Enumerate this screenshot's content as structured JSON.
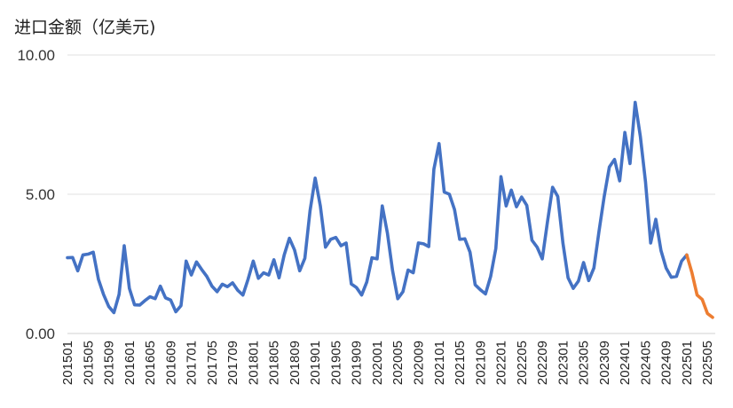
{
  "chart_data": {
    "type": "line",
    "title": "进口金额（亿美元)",
    "xlabel": "",
    "ylabel": "",
    "ylim": [
      0,
      10
    ],
    "yticks": [
      "0.00",
      "5.00",
      "10.00"
    ],
    "grid": true,
    "x_start": "201501",
    "x_end": "202506",
    "x_tick_labels": [
      "201501",
      "201505",
      "201509",
      "201601",
      "201605",
      "201609",
      "201701",
      "201705",
      "201709",
      "201801",
      "201805",
      "201809",
      "201901",
      "201905",
      "201909",
      "202001",
      "202005",
      "202009",
      "202101",
      "202105",
      "202109",
      "202201",
      "202205",
      "202209",
      "202301",
      "202305",
      "202309",
      "202401",
      "202405",
      "202409",
      "202501",
      "202505"
    ],
    "series": [
      {
        "color": "#4472C4",
        "x": [
          "201501",
          "201502",
          "201503",
          "201504",
          "201505",
          "201506",
          "201507",
          "201508",
          "201509",
          "201510",
          "201511",
          "201512",
          "201601",
          "201602",
          "201603",
          "201604",
          "201605",
          "201606",
          "201607",
          "201608",
          "201609",
          "201610",
          "201611",
          "201612",
          "201701",
          "201702",
          "201703",
          "201704",
          "201705",
          "201706",
          "201707",
          "201708",
          "201709",
          "201710",
          "201711",
          "201712",
          "201801",
          "201802",
          "201803",
          "201804",
          "201805",
          "201806",
          "201807",
          "201808",
          "201809",
          "201810",
          "201811",
          "201812",
          "201901",
          "201902",
          "201903",
          "201904",
          "201905",
          "201906",
          "201907",
          "201908",
          "201909",
          "201910",
          "201911",
          "201912",
          "202001",
          "202002",
          "202003",
          "202004",
          "202005",
          "202006",
          "202007",
          "202008",
          "202009",
          "202010",
          "202011",
          "202012",
          "202101",
          "202102",
          "202103",
          "202104",
          "202105",
          "202106",
          "202107",
          "202108",
          "202109",
          "202110",
          "202111",
          "202112",
          "202201",
          "202202",
          "202203",
          "202204",
          "202205",
          "202206",
          "202207",
          "202208",
          "202209",
          "202210",
          "202211",
          "202212",
          "202301",
          "202302",
          "202303",
          "202304",
          "202305",
          "202306",
          "202307",
          "202308",
          "202309",
          "202310",
          "202311",
          "202312",
          "202401",
          "202402",
          "202403",
          "202404",
          "202405",
          "202406",
          "202407",
          "202408",
          "202409",
          "202410",
          "202411",
          "202412",
          "202501"
        ],
        "values": [
          2.72,
          2.73,
          2.25,
          2.82,
          2.85,
          2.92,
          1.95,
          1.4,
          0.97,
          0.75,
          1.4,
          3.15,
          1.62,
          1.03,
          1.02,
          1.18,
          1.32,
          1.25,
          1.7,
          1.28,
          1.2,
          0.78,
          1.0,
          2.6,
          2.1,
          2.57,
          2.3,
          2.05,
          1.7,
          1.5,
          1.77,
          1.68,
          1.82,
          1.55,
          1.38,
          1.95,
          2.6,
          1.98,
          2.18,
          2.1,
          2.65,
          2.0,
          2.82,
          3.42,
          3.0,
          2.25,
          2.7,
          4.4,
          5.58,
          4.58,
          3.1,
          3.38,
          3.45,
          3.15,
          3.25,
          1.78,
          1.65,
          1.38,
          1.85,
          2.72,
          2.68,
          4.58,
          3.6,
          2.25,
          1.25,
          1.5,
          2.28,
          2.18,
          3.25,
          3.22,
          3.12,
          5.9,
          6.82,
          5.08,
          5.0,
          4.45,
          3.38,
          3.4,
          2.92,
          1.75,
          1.57,
          1.42,
          2.05,
          3.05,
          5.63,
          4.58,
          5.15,
          4.55,
          4.9,
          4.6,
          3.35,
          3.1,
          2.68,
          4.0,
          5.25,
          4.92,
          3.25,
          2.0,
          1.62,
          1.88,
          2.55,
          1.9,
          2.35,
          3.68,
          4.92,
          5.98,
          6.25,
          5.48,
          7.22,
          6.1,
          8.3,
          7.08,
          5.45,
          3.25,
          4.1,
          2.98,
          2.35,
          2.02,
          2.05,
          2.6,
          2.82
        ]
      },
      {
        "color": "#ED7D31",
        "x": [
          "202501",
          "202502",
          "202503",
          "202504",
          "202505",
          "202506"
        ],
        "values": [
          2.82,
          2.18,
          1.38,
          1.22,
          0.72,
          0.58
        ]
      }
    ]
  }
}
